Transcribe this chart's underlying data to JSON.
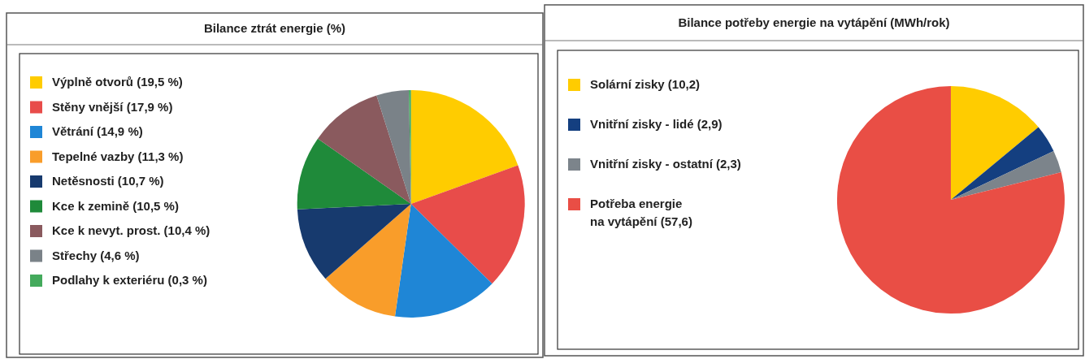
{
  "chart_data": [
    {
      "type": "pie",
      "title": "Bilance ztrát energie (%)",
      "categories": [
        "Výplně otvorů (19,5 %)",
        "Stěny vnější (17,9 %)",
        "Větrání (14,9 %)",
        "Tepelné vazby (11,3 %)",
        "Netěsnosti (10,7 %)",
        "Kce k zemině (10,5 %)",
        "Kce k nevyt. prost. (10,4 %)",
        "Střechy (4,6 %)",
        "Podlahy k exteriéru (0,3 %)"
      ],
      "values": [
        19.5,
        17.9,
        14.9,
        11.3,
        10.7,
        10.5,
        10.4,
        4.6,
        0.3
      ],
      "colors": [
        "#ffcc00",
        "#e84c4a",
        "#1f86d6",
        "#f99d2a",
        "#173a6e",
        "#1f8a3a",
        "#8a5a5e",
        "#7a8288",
        "#44aa5c"
      ],
      "legend": "left"
    },
    {
      "type": "pie",
      "title": "Bilance potřeby energie na vytápění (MWh/rok)",
      "categories": [
        "Solární zisky (10,2)",
        "Vnitřní zisky - lidé (2,9)",
        "Vnitřní zisky - ostatní (2,3)",
        "Potřeba energie\nna vytápění (57,6)"
      ],
      "values": [
        10.2,
        2.9,
        2.3,
        57.6
      ],
      "colors": [
        "#ffcc00",
        "#143f80",
        "#7c848b",
        "#e94e45"
      ],
      "legend": "left"
    }
  ]
}
